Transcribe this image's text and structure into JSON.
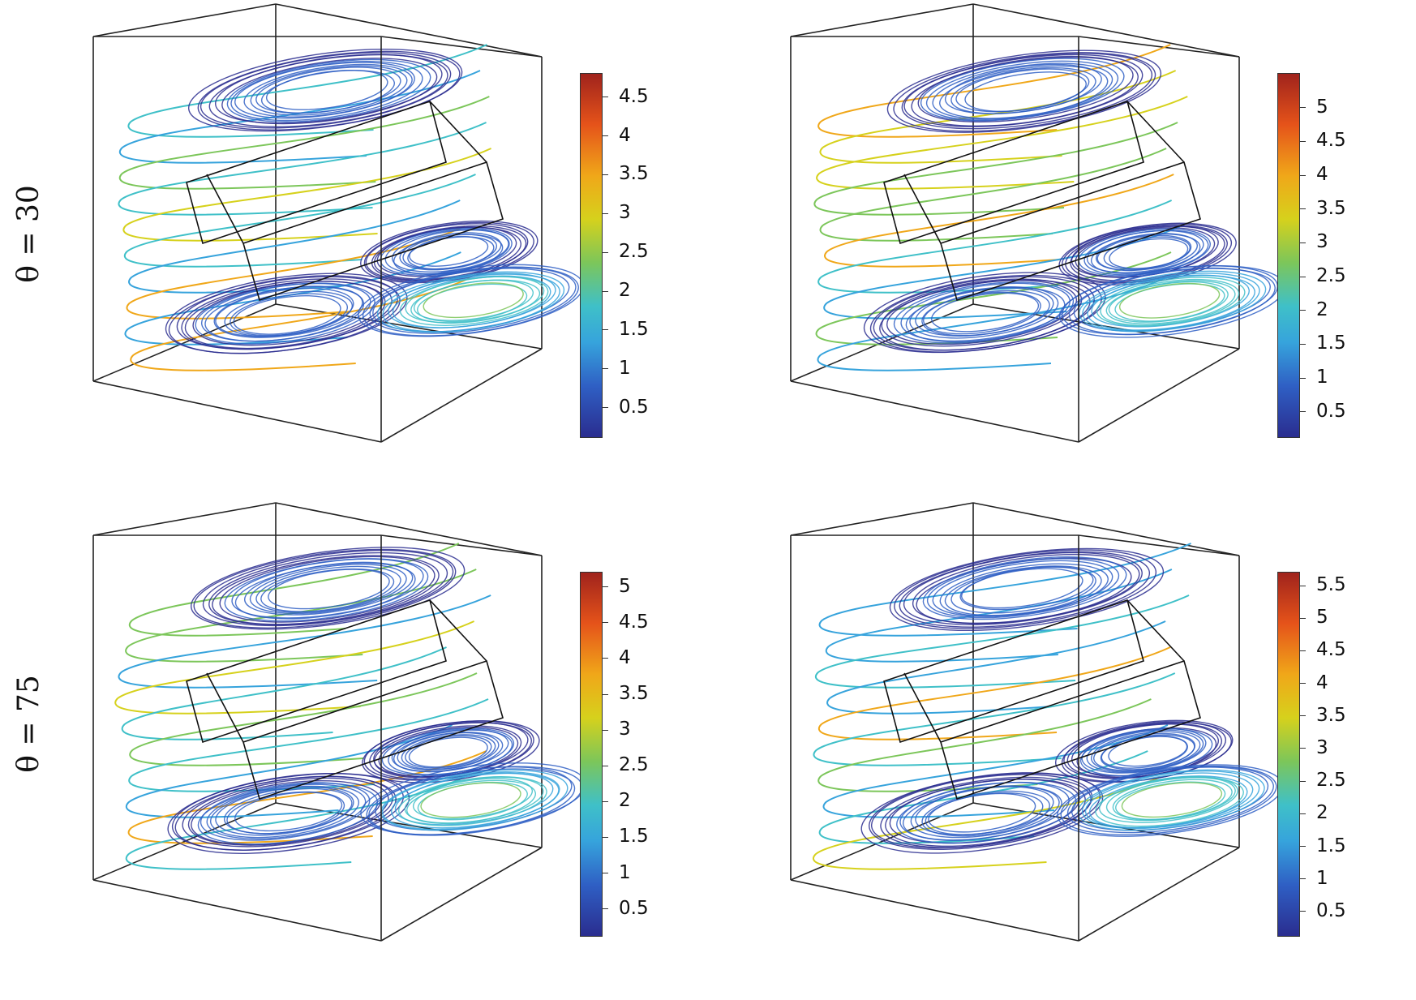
{
  "figure": {
    "rows": [
      {
        "label": "θ = 30"
      },
      {
        "label": "θ = 75"
      }
    ],
    "panels": [
      {
        "id": "top-left",
        "row": 0,
        "colorbar": {
          "min": 0.1,
          "max": 4.8,
          "ticks": [
            "0.5",
            "1",
            "1.5",
            "2",
            "2.5",
            "3",
            "3.5",
            "4",
            "4.5"
          ]
        }
      },
      {
        "id": "top-right",
        "row": 0,
        "colorbar": {
          "min": 0.1,
          "max": 5.5,
          "ticks": [
            "0.5",
            "1",
            "1.5",
            "2",
            "2.5",
            "3",
            "3.5",
            "4",
            "4.5",
            "5"
          ]
        }
      },
      {
        "id": "bottom-left",
        "row": 1,
        "colorbar": {
          "min": 0.1,
          "max": 5.2,
          "ticks": [
            "0.5",
            "1",
            "1.5",
            "2",
            "2.5",
            "3",
            "3.5",
            "4",
            "4.5",
            "5"
          ]
        }
      },
      {
        "id": "bottom-right",
        "row": 1,
        "colorbar": {
          "min": 0.1,
          "max": 5.7,
          "ticks": [
            "0.5",
            "1",
            "1.5",
            "2",
            "2.5",
            "3",
            "3.5",
            "4",
            "4.5",
            "5",
            "5.5"
          ]
        }
      }
    ],
    "colormap": [
      "#2a2d8f",
      "#2f5fc4",
      "#36a3dc",
      "#3fc0c8",
      "#7cc65a",
      "#d6d11c",
      "#f0a719",
      "#e5531a",
      "#a0231c"
    ]
  }
}
